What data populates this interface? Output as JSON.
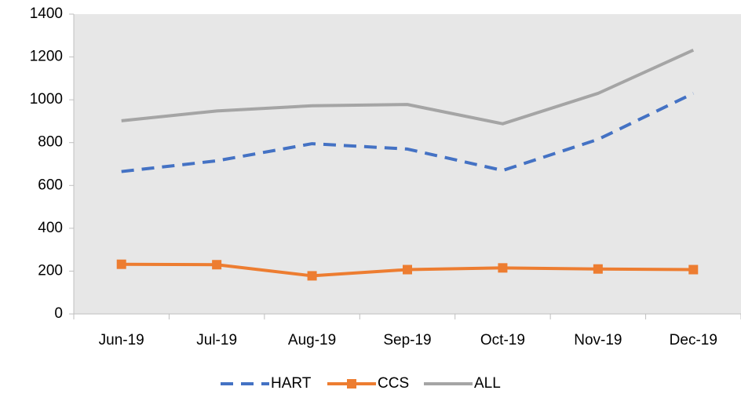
{
  "chart_data": {
    "type": "line",
    "categories": [
      "Jun-19",
      "Jul-19",
      "Aug-19",
      "Sep-19",
      "Oct-19",
      "Nov-19",
      "Dec-19"
    ],
    "series": [
      {
        "name": "HART",
        "color": "#4472c4",
        "dash": true,
        "marker": null,
        "values": [
          665,
          715,
          795,
          770,
          670,
          815,
          1030
        ]
      },
      {
        "name": "CCS",
        "color": "#ed7d31",
        "dash": false,
        "marker": "square",
        "values": [
          232,
          230,
          178,
          207,
          215,
          210,
          207
        ]
      },
      {
        "name": "ALL",
        "color": "#a5a5a5",
        "dash": false,
        "marker": null,
        "values": [
          902,
          948,
          972,
          978,
          888,
          1030,
          1232
        ]
      }
    ],
    "ylim": [
      0,
      1400
    ],
    "yticks": [
      0,
      200,
      400,
      600,
      800,
      1000,
      1200,
      1400
    ],
    "grid": false,
    "legend": "bottom",
    "plot_background": "#e7e7e7"
  }
}
